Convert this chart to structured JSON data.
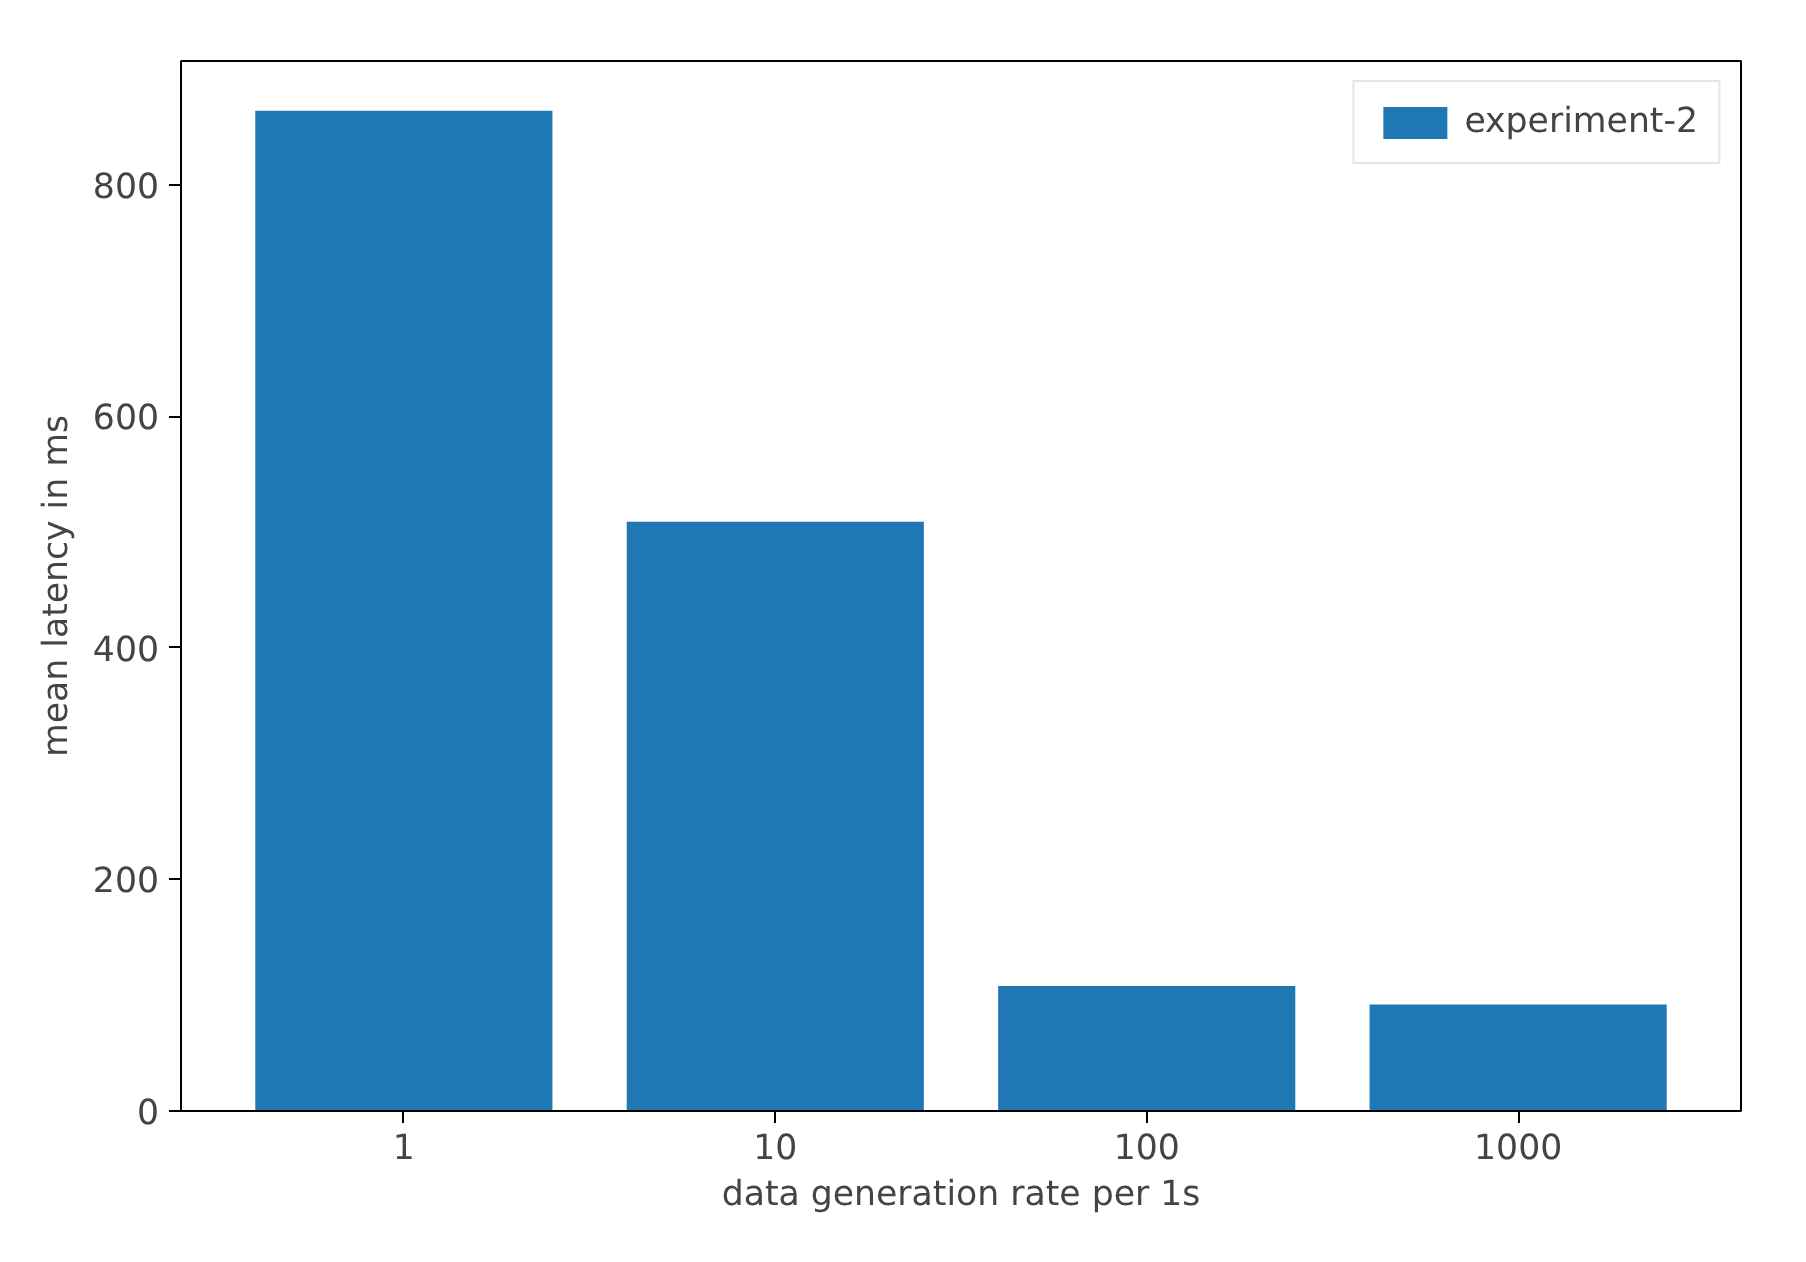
{
  "chart_data": {
    "type": "bar",
    "xlabel": "data generation rate per 1s",
    "ylabel": "mean latency in ms",
    "categories": [
      "1",
      "10",
      "100",
      "1000"
    ],
    "series": [
      {
        "name": "experiment-2",
        "color": "#1f77b4",
        "values": [
          864,
          509,
          108,
          92
        ]
      }
    ],
    "ylim": [
      0,
      907
    ],
    "yticks": [
      0,
      200,
      400,
      600,
      800
    ],
    "grid": false,
    "legend": "top right"
  }
}
